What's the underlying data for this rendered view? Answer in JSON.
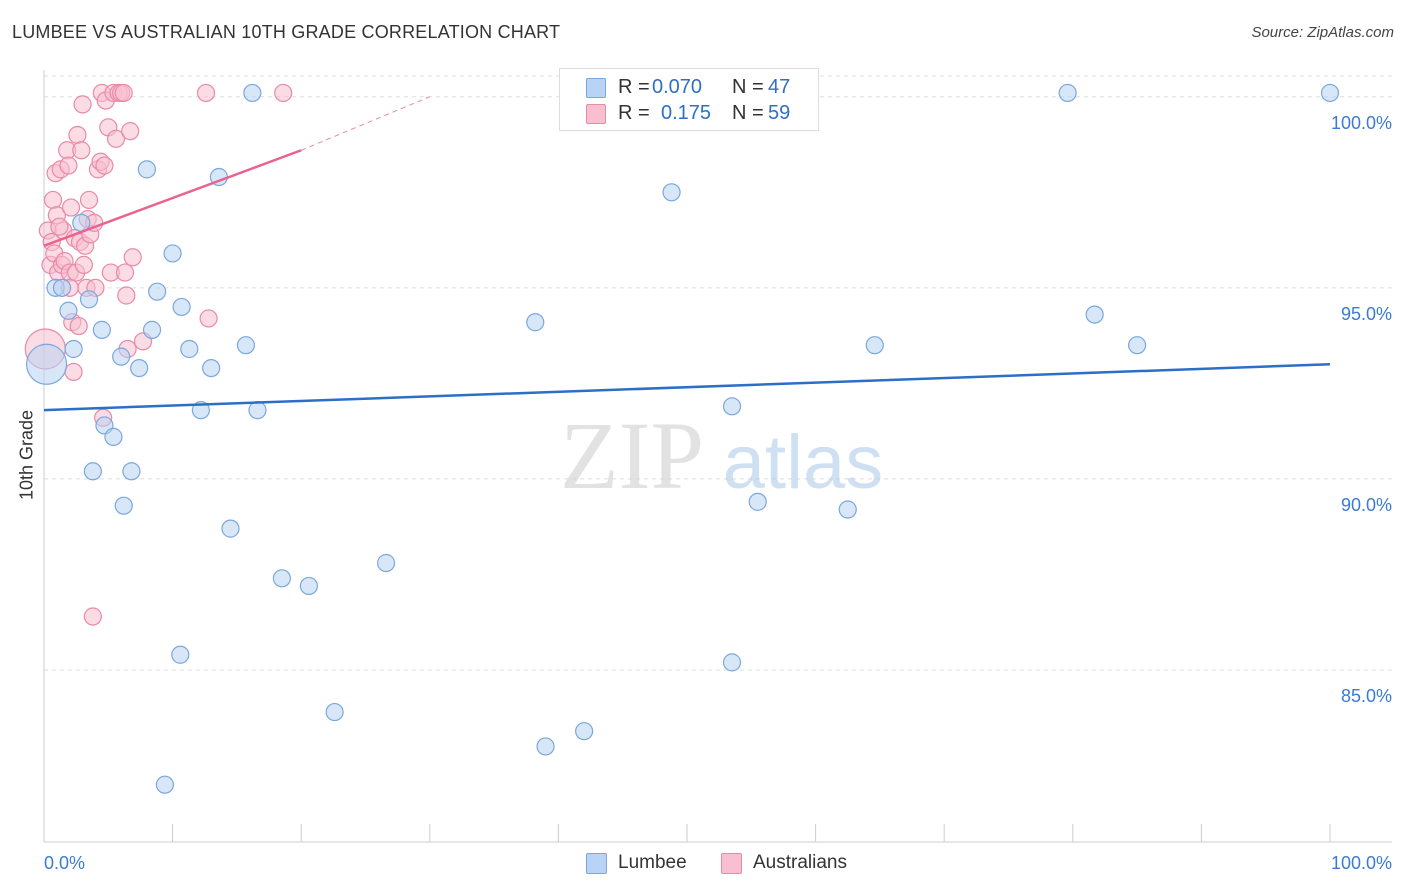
{
  "title": "LUMBEE VS AUSTRALIAN 10TH GRADE CORRELATION CHART",
  "source": "Source: ZipAtlas.com",
  "watermark": {
    "zip": "ZIP",
    "atlas": "atlas"
  },
  "legend": {
    "rows": [
      {
        "r_label": "R =",
        "r_value": "0.070",
        "n_label": "N =",
        "n_value": "47"
      },
      {
        "r_label": "R =",
        "r_value": "0.175",
        "n_label": "N =",
        "n_value": "59"
      }
    ]
  },
  "bottom_legend": {
    "lumbee": "Lumbee",
    "australians": "Australians"
  },
  "colors": {
    "lumbee_fill": "#b8d3f3",
    "lumbee_stroke": "#7aa7dd",
    "lumbee_line": "#2b6fc7",
    "aus_fill": "#f7bfd0",
    "aus_stroke": "#e88aa8",
    "aus_line": "#e8638e",
    "grid": "#dddddd",
    "tick_label": "#3b7bd4"
  },
  "chart_data": {
    "type": "scatter",
    "title": "LUMBEE VS AUSTRALIAN 10TH GRADE CORRELATION CHART",
    "xlabel": "",
    "ylabel": "10th Grade",
    "xlim": [
      0,
      100
    ],
    "ylim": [
      80.5,
      100.7
    ],
    "x_tick_labels": [
      "0.0%",
      "100.0%"
    ],
    "y_ticks": [
      85,
      90,
      95,
      100
    ],
    "y_tick_labels": [
      "85.0%",
      "90.0%",
      "95.0%",
      "100.0%"
    ],
    "series": [
      {
        "name": "Lumbee",
        "R": 0.07,
        "N": 47,
        "trend": {
          "x": [
            0,
            100
          ],
          "y": [
            91.8,
            93.0
          ]
        },
        "points": [
          {
            "x": 0.2,
            "y": 93.0,
            "big": true
          },
          {
            "x": 0.9,
            "y": 95.0
          },
          {
            "x": 1.4,
            "y": 95.0
          },
          {
            "x": 1.9,
            "y": 94.4
          },
          {
            "x": 2.3,
            "y": 93.4
          },
          {
            "x": 2.9,
            "y": 96.7
          },
          {
            "x": 3.5,
            "y": 94.7
          },
          {
            "x": 3.8,
            "y": 90.2
          },
          {
            "x": 4.5,
            "y": 93.9
          },
          {
            "x": 4.7,
            "y": 91.4
          },
          {
            "x": 5.4,
            "y": 91.1
          },
          {
            "x": 6.0,
            "y": 93.2
          },
          {
            "x": 6.2,
            "y": 89.3
          },
          {
            "x": 6.8,
            "y": 90.2
          },
          {
            "x": 7.4,
            "y": 92.9
          },
          {
            "x": 8.0,
            "y": 98.1
          },
          {
            "x": 8.4,
            "y": 93.9
          },
          {
            "x": 8.8,
            "y": 94.9
          },
          {
            "x": 9.4,
            "y": 82.0
          },
          {
            "x": 10.0,
            "y": 95.9
          },
          {
            "x": 10.6,
            "y": 85.4
          },
          {
            "x": 10.7,
            "y": 94.5
          },
          {
            "x": 11.3,
            "y": 93.4
          },
          {
            "x": 12.2,
            "y": 91.8
          },
          {
            "x": 13.0,
            "y": 92.9
          },
          {
            "x": 13.6,
            "y": 97.9
          },
          {
            "x": 14.5,
            "y": 88.7
          },
          {
            "x": 15.7,
            "y": 93.5
          },
          {
            "x": 16.2,
            "y": 100.1
          },
          {
            "x": 16.6,
            "y": 91.8
          },
          {
            "x": 18.5,
            "y": 87.4
          },
          {
            "x": 20.6,
            "y": 87.2
          },
          {
            "x": 22.6,
            "y": 83.9
          },
          {
            "x": 26.6,
            "y": 87.8
          },
          {
            "x": 38.2,
            "y": 94.1
          },
          {
            "x": 39.0,
            "y": 83.0
          },
          {
            "x": 42.0,
            "y": 83.4
          },
          {
            "x": 48.8,
            "y": 97.5
          },
          {
            "x": 53.5,
            "y": 91.9
          },
          {
            "x": 53.5,
            "y": 85.2
          },
          {
            "x": 55.5,
            "y": 89.4
          },
          {
            "x": 62.5,
            "y": 89.2
          },
          {
            "x": 64.6,
            "y": 93.5
          },
          {
            "x": 79.6,
            "y": 100.1
          },
          {
            "x": 81.7,
            "y": 94.3
          },
          {
            "x": 85.0,
            "y": 93.5
          },
          {
            "x": 100.0,
            "y": 100.1
          }
        ]
      },
      {
        "name": "Australians",
        "R": 0.175,
        "N": 59,
        "trend": {
          "x": [
            0,
            20.0
          ],
          "y": [
            96.1,
            98.6
          ]
        },
        "trend_dashed": {
          "x": [
            20.0,
            30.0
          ],
          "y": [
            98.6,
            100.0
          ]
        },
        "points": [
          {
            "x": 0.1,
            "y": 93.4,
            "big": true
          },
          {
            "x": 0.3,
            "y": 96.5
          },
          {
            "x": 0.5,
            "y": 95.6
          },
          {
            "x": 0.6,
            "y": 96.2
          },
          {
            "x": 0.7,
            "y": 97.3
          },
          {
            "x": 0.8,
            "y": 95.9
          },
          {
            "x": 0.9,
            "y": 98.0
          },
          {
            "x": 1.0,
            "y": 96.9
          },
          {
            "x": 1.1,
            "y": 95.4
          },
          {
            "x": 1.3,
            "y": 98.1
          },
          {
            "x": 1.4,
            "y": 95.6
          },
          {
            "x": 1.5,
            "y": 96.5
          },
          {
            "x": 1.6,
            "y": 95.7
          },
          {
            "x": 1.8,
            "y": 98.6
          },
          {
            "x": 1.9,
            "y": 98.2
          },
          {
            "x": 2.0,
            "y": 95.4
          },
          {
            "x": 2.1,
            "y": 97.1
          },
          {
            "x": 2.2,
            "y": 94.1
          },
          {
            "x": 2.3,
            "y": 92.8
          },
          {
            "x": 2.4,
            "y": 96.3
          },
          {
            "x": 2.5,
            "y": 95.4
          },
          {
            "x": 2.6,
            "y": 99.0
          },
          {
            "x": 2.7,
            "y": 94.0
          },
          {
            "x": 2.8,
            "y": 96.2
          },
          {
            "x": 2.9,
            "y": 98.6
          },
          {
            "x": 3.0,
            "y": 99.8
          },
          {
            "x": 3.1,
            "y": 95.6
          },
          {
            "x": 3.2,
            "y": 96.1
          },
          {
            "x": 3.3,
            "y": 95.0
          },
          {
            "x": 3.4,
            "y": 96.8
          },
          {
            "x": 3.5,
            "y": 97.3
          },
          {
            "x": 3.6,
            "y": 96.4
          },
          {
            "x": 3.8,
            "y": 86.4
          },
          {
            "x": 4.0,
            "y": 95.0
          },
          {
            "x": 4.2,
            "y": 98.1
          },
          {
            "x": 4.4,
            "y": 98.3
          },
          {
            "x": 4.5,
            "y": 100.1
          },
          {
            "x": 4.6,
            "y": 91.6
          },
          {
            "x": 4.7,
            "y": 98.2
          },
          {
            "x": 4.8,
            "y": 99.9
          },
          {
            "x": 5.0,
            "y": 99.2
          },
          {
            "x": 5.2,
            "y": 95.4
          },
          {
            "x": 5.4,
            "y": 100.1
          },
          {
            "x": 5.6,
            "y": 98.9
          },
          {
            "x": 5.8,
            "y": 100.1
          },
          {
            "x": 6.0,
            "y": 100.1
          },
          {
            "x": 6.2,
            "y": 100.1
          },
          {
            "x": 6.3,
            "y": 95.4
          },
          {
            "x": 6.4,
            "y": 94.8
          },
          {
            "x": 6.5,
            "y": 93.4
          },
          {
            "x": 6.7,
            "y": 99.1
          },
          {
            "x": 6.9,
            "y": 95.8
          },
          {
            "x": 7.7,
            "y": 93.6
          },
          {
            "x": 12.6,
            "y": 100.1
          },
          {
            "x": 12.8,
            "y": 94.2
          },
          {
            "x": 18.6,
            "y": 100.1
          },
          {
            "x": 2.0,
            "y": 95.0
          },
          {
            "x": 1.2,
            "y": 96.6
          },
          {
            "x": 3.9,
            "y": 96.7
          }
        ]
      }
    ]
  }
}
